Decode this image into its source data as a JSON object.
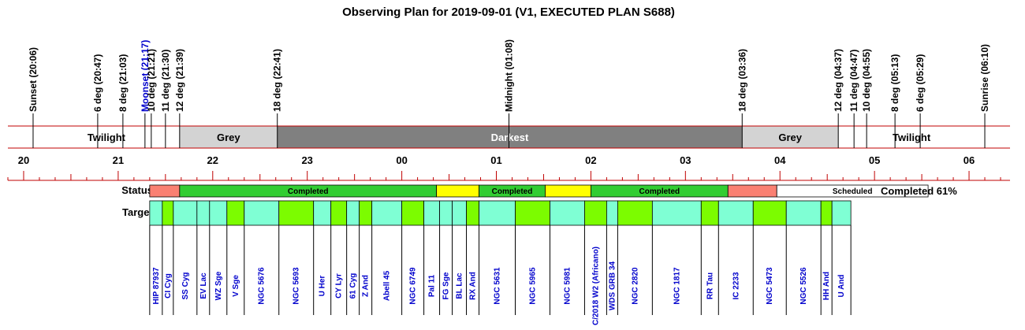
{
  "chart_data": {
    "type": "timeline",
    "title": "Observing Plan for 2019-09-01 (V1, EXECUTED PLAN S688)",
    "time_range": [
      "19:50",
      "06:26"
    ],
    "events": [
      {
        "label": "Sunset (20:06)",
        "time": "20:06",
        "color": "#000000"
      },
      {
        "label": "6 deg (20:47)",
        "time": "20:47",
        "color": "#000000"
      },
      {
        "label": "8 deg (21:03)",
        "time": "21:03",
        "color": "#000000"
      },
      {
        "label": "Moonset (21:17)",
        "time": "21:17",
        "color": "#0000cc"
      },
      {
        "label": "10 deg (21:21)",
        "time": "21:21",
        "color": "#000000"
      },
      {
        "label": "11 deg (21:30)",
        "time": "21:30",
        "color": "#000000"
      },
      {
        "label": "12 deg (21:39)",
        "time": "21:39",
        "color": "#000000"
      },
      {
        "label": "18 deg (22:41)",
        "time": "22:41",
        "color": "#000000"
      },
      {
        "label": "Midnight (01:08)",
        "time": "01:08",
        "color": "#000000"
      },
      {
        "label": "18 deg (03:36)",
        "time": "03:36",
        "color": "#000000"
      },
      {
        "label": "12 deg (04:37)",
        "time": "04:37",
        "color": "#000000"
      },
      {
        "label": "11 deg (04:47)",
        "time": "04:47",
        "color": "#000000"
      },
      {
        "label": "10 deg (04:55)",
        "time": "04:55",
        "color": "#000000"
      },
      {
        "label": "8 deg (05:13)",
        "time": "05:13",
        "color": "#000000"
      },
      {
        "label": "6 deg (05:29)",
        "time": "05:29",
        "color": "#000000"
      },
      {
        "label": "Sunrise (06:10)",
        "time": "06:10",
        "color": "#000000"
      }
    ],
    "bands": [
      {
        "label": "",
        "start": "19:50",
        "end": "20:06",
        "color": "#ffffff",
        "text_color": "#000000"
      },
      {
        "label": "Twilight",
        "start": "20:06",
        "end": "21:39",
        "color": "#ffffff",
        "text_color": "#000000"
      },
      {
        "label": "Grey",
        "start": "21:39",
        "end": "22:41",
        "color": "#d3d3d3",
        "text_color": "#000000"
      },
      {
        "label": "Darkest",
        "start": "22:41",
        "end": "03:36",
        "color": "#808080",
        "text_color": "#ffffff"
      },
      {
        "label": "Grey",
        "start": "03:36",
        "end": "04:37",
        "color": "#d3d3d3",
        "text_color": "#000000"
      },
      {
        "label": "Twilight",
        "start": "04:37",
        "end": "06:10",
        "color": "#ffffff",
        "text_color": "#000000"
      },
      {
        "label": "",
        "start": "06:10",
        "end": "06:26",
        "color": "#ffffff",
        "text_color": "#000000"
      }
    ],
    "hour_labels": [
      "20",
      "21",
      "22",
      "23",
      "00",
      "01",
      "02",
      "03",
      "04",
      "05",
      "06"
    ],
    "status_label": "Status",
    "targets_label": "Targets",
    "status": [
      {
        "label": "",
        "start": "21:20",
        "end": "21:39",
        "color": "#fa8072"
      },
      {
        "label": "Completed",
        "start": "21:39",
        "end": "00:22",
        "color": "#32cd32"
      },
      {
        "label": "",
        "start": "00:22",
        "end": "00:49",
        "color": "#ffff00"
      },
      {
        "label": "Completed",
        "start": "00:49",
        "end": "01:31",
        "color": "#32cd32"
      },
      {
        "label": "",
        "start": "01:31",
        "end": "02:00",
        "color": "#ffff00"
      },
      {
        "label": "Completed",
        "start": "02:00",
        "end": "03:27",
        "color": "#32cd32"
      },
      {
        "label": "",
        "start": "03:27",
        "end": "03:58",
        "color": "#fa8072"
      },
      {
        "label": "Scheduled",
        "start": "03:58",
        "end": "05:34",
        "color": "#ffffff"
      }
    ],
    "summary": "Completed 61%",
    "targets": [
      {
        "name": "HIP 87937",
        "start": "21:20",
        "end": "21:28",
        "color": "#7fffd4"
      },
      {
        "name": "CI Cyg",
        "start": "21:28",
        "end": "21:35",
        "color": "#7cfc00"
      },
      {
        "name": "SS Cyg",
        "start": "21:35",
        "end": "21:50",
        "color": "#7fffd4"
      },
      {
        "name": "EV Lac",
        "start": "21:50",
        "end": "21:58",
        "color": "#7fffd4"
      },
      {
        "name": "WZ Sge",
        "start": "21:58",
        "end": "22:09",
        "color": "#7fffd4"
      },
      {
        "name": "V Sge",
        "start": "22:09",
        "end": "22:20",
        "color": "#7cfc00"
      },
      {
        "name": "NGC 5676",
        "start": "22:20",
        "end": "22:42",
        "color": "#7fffd4"
      },
      {
        "name": "NGC 5693",
        "start": "22:42",
        "end": "23:04",
        "color": "#7cfc00"
      },
      {
        "name": "U Her",
        "start": "23:04",
        "end": "23:15",
        "color": "#7fffd4"
      },
      {
        "name": "CY Lyr",
        "start": "23:15",
        "end": "23:25",
        "color": "#7cfc00"
      },
      {
        "name": "61 Cyg",
        "start": "23:25",
        "end": "23:33",
        "color": "#7fffd4"
      },
      {
        "name": "Z And",
        "start": "23:33",
        "end": "23:41",
        "color": "#7cfc00"
      },
      {
        "name": "Abell 45",
        "start": "23:41",
        "end": "00:00",
        "color": "#7fffd4"
      },
      {
        "name": "NGC 6749",
        "start": "00:00",
        "end": "00:14",
        "color": "#7cfc00"
      },
      {
        "name": "Pal 11",
        "start": "00:14",
        "end": "00:24",
        "color": "#7fffd4"
      },
      {
        "name": "FG Sge",
        "start": "00:24",
        "end": "00:32",
        "color": "#7fffd4"
      },
      {
        "name": "BL Lac",
        "start": "00:32",
        "end": "00:41",
        "color": "#7fffd4"
      },
      {
        "name": "RX And",
        "start": "00:41",
        "end": "00:49",
        "color": "#7cfc00"
      },
      {
        "name": "NGC 5631",
        "start": "00:49",
        "end": "01:12",
        "color": "#7fffd4"
      },
      {
        "name": "NGC 5965",
        "start": "01:12",
        "end": "01:34",
        "color": "#7cfc00"
      },
      {
        "name": "NGC 5981",
        "start": "01:34",
        "end": "01:56",
        "color": "#7fffd4"
      },
      {
        "name": "C/2018 W2 (Africano)",
        "start": "01:56",
        "end": "02:10",
        "color": "#7cfc00"
      },
      {
        "name": "WDS GRB 34",
        "start": "02:10",
        "end": "02:17",
        "color": "#7fffd4"
      },
      {
        "name": "NGC 2820",
        "start": "02:17",
        "end": "02:39",
        "color": "#7cfc00"
      },
      {
        "name": "NGC 1817",
        "start": "02:39",
        "end": "03:10",
        "color": "#7fffd4"
      },
      {
        "name": "RR Tau",
        "start": "03:10",
        "end": "03:21",
        "color": "#7cfc00"
      },
      {
        "name": "IC 2233",
        "start": "03:21",
        "end": "03:43",
        "color": "#7fffd4"
      },
      {
        "name": "NGC 5473",
        "start": "03:43",
        "end": "04:04",
        "color": "#7cfc00"
      },
      {
        "name": "NGC 5526",
        "start": "04:04",
        "end": "04:26",
        "color": "#7fffd4"
      },
      {
        "name": "HH And",
        "start": "04:26",
        "end": "04:33",
        "color": "#7cfc00"
      },
      {
        "name": "U And",
        "start": "04:33",
        "end": "04:45",
        "color": "#7fffd4"
      }
    ],
    "grid_color": "#c00000"
  }
}
